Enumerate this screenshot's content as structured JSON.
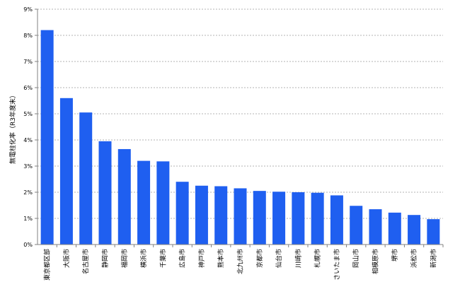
{
  "chart_data": {
    "type": "bar",
    "title": "",
    "xlabel": "",
    "ylabel": "無電柱化率（R3年度末）",
    "ylim": [
      0,
      9
    ],
    "yticks": [
      "0%",
      "1%",
      "2%",
      "3%",
      "4%",
      "5%",
      "6%",
      "7%",
      "8%",
      "9%"
    ],
    "grid": true,
    "bar_color": "#1f5ff0",
    "categories": [
      "東京都区部",
      "大阪市",
      "名古屋市",
      "静岡市",
      "福岡市",
      "横浜市",
      "千葉市",
      "広島市",
      "神戸市",
      "熊本市",
      "北九州市",
      "京都市",
      "仙台市",
      "川崎市",
      "札幌市",
      "さいたま市",
      "岡山市",
      "相模原市",
      "堺市",
      "浜松市",
      "新潟市"
    ],
    "values": [
      8.2,
      5.6,
      5.05,
      3.95,
      3.65,
      3.2,
      3.18,
      2.4,
      2.25,
      2.23,
      2.15,
      2.05,
      2.02,
      2.0,
      1.98,
      1.88,
      1.48,
      1.35,
      1.22,
      1.13,
      0.97
    ]
  }
}
